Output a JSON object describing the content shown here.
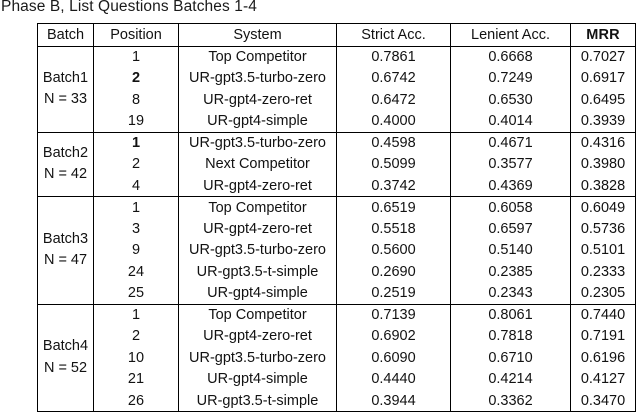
{
  "title": "Phase B, List Questions Batches 1-4",
  "table": {
    "columns": [
      "Batch",
      "Position",
      "System",
      "Strict Acc.",
      "Lenient Acc.",
      "MRR"
    ],
    "batches": [
      {
        "name": "Batch1",
        "n_label": "N = 33",
        "rows": [
          {
            "position": "1",
            "position_bold": false,
            "system": "Top Competitor",
            "strict": "0.7861",
            "lenient": "0.6668",
            "mrr": "0.7027"
          },
          {
            "position": "2",
            "position_bold": true,
            "system": "UR-gpt3.5-turbo-zero",
            "strict": "0.6742",
            "lenient": "0.7249",
            "mrr": "0.6917"
          },
          {
            "position": "8",
            "position_bold": false,
            "system": "UR-gpt4-zero-ret",
            "strict": "0.6472",
            "lenient": "0.6530",
            "mrr": "0.6495"
          },
          {
            "position": "19",
            "position_bold": false,
            "system": "UR-gpt4-simple",
            "strict": "0.4000",
            "lenient": "0.4014",
            "mrr": "0.3939"
          }
        ]
      },
      {
        "name": "Batch2",
        "n_label": "N = 42",
        "rows": [
          {
            "position": "1",
            "position_bold": true,
            "system": "UR-gpt3.5-turbo-zero",
            "strict": "0.4598",
            "lenient": "0.4671",
            "mrr": "0.4316"
          },
          {
            "position": "2",
            "position_bold": false,
            "system": "Next Competitor",
            "strict": "0.5099",
            "lenient": "0.3577",
            "mrr": "0.3980"
          },
          {
            "position": "4",
            "position_bold": false,
            "system": "UR-gpt4-zero-ret",
            "strict": "0.3742",
            "lenient": "0.4369",
            "mrr": "0.3828"
          }
        ]
      },
      {
        "name": "Batch3",
        "n_label": "N = 47",
        "rows": [
          {
            "position": "1",
            "position_bold": false,
            "system": "Top Competitor",
            "strict": "0.6519",
            "lenient": "0.6058",
            "mrr": "0.6049"
          },
          {
            "position": "3",
            "position_bold": false,
            "system": "UR-gpt4-zero-ret",
            "strict": "0.5518",
            "lenient": "0.6597",
            "mrr": "0.5736"
          },
          {
            "position": "9",
            "position_bold": false,
            "system": "UR-gpt3.5-turbo-zero",
            "strict": "0.5600",
            "lenient": "0.5140",
            "mrr": "0.5101"
          },
          {
            "position": "24",
            "position_bold": false,
            "system": "UR-gpt3.5-t-simple",
            "strict": "0.2690",
            "lenient": "0.2385",
            "mrr": "0.2333"
          },
          {
            "position": "25",
            "position_bold": false,
            "system": "UR-gpt4-simple",
            "strict": "0.2519",
            "lenient": "0.2343",
            "mrr": "0.2305"
          }
        ]
      },
      {
        "name": "Batch4",
        "n_label": "N = 52",
        "rows": [
          {
            "position": "1",
            "position_bold": false,
            "system": "Top Competitor",
            "strict": "0.7139",
            "lenient": "0.8061",
            "mrr": "0.7440"
          },
          {
            "position": "2",
            "position_bold": false,
            "system": "UR-gpt4-zero-ret",
            "strict": "0.6902",
            "lenient": "0.7818",
            "mrr": "0.7191"
          },
          {
            "position": "10",
            "position_bold": false,
            "system": "UR-gpt3.5-turbo-zero",
            "strict": "0.6090",
            "lenient": "0.6710",
            "mrr": "0.6196"
          },
          {
            "position": "21",
            "position_bold": false,
            "system": "UR-gpt4-simple",
            "strict": "0.4440",
            "lenient": "0.4214",
            "mrr": "0.4127"
          },
          {
            "position": "26",
            "position_bold": false,
            "system": "UR-gpt3.5-t-simple",
            "strict": "0.3944",
            "lenient": "0.3362",
            "mrr": "0.3470"
          }
        ]
      }
    ]
  }
}
